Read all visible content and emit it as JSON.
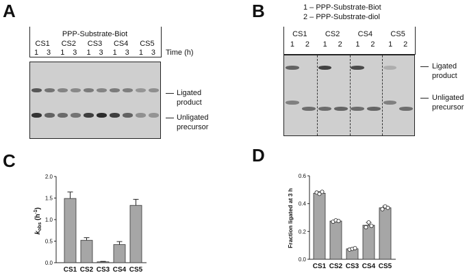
{
  "panelA": {
    "label": "A",
    "title": "PPP-Substrate-Biot",
    "lanes": [
      "CS1",
      "CS2",
      "CS3",
      "CS4",
      "CS5"
    ],
    "times": [
      "1",
      "3"
    ],
    "time_label": "Time (h)",
    "ligated_label": [
      "Ligated",
      "product"
    ],
    "unligated_label": [
      "Unligated",
      "precursor"
    ]
  },
  "panelB": {
    "label": "B",
    "legend": [
      "1 – PPP-Substrate-Biot",
      "2 – PPP-Substrate-diol"
    ],
    "lanes": [
      "CS1",
      "CS2",
      "CS4",
      "CS5"
    ],
    "subs": [
      "1",
      "2"
    ],
    "ligated_label": [
      "Ligated",
      "product"
    ],
    "unligated_label": [
      "Unligated",
      "precursor"
    ]
  },
  "panelC": {
    "label": "C"
  },
  "panelD": {
    "label": "D"
  },
  "chart_data": [
    {
      "type": "bar",
      "categories": [
        "CS1",
        "CS2",
        "CS3",
        "CS4",
        "CS5"
      ],
      "values": [
        1.49,
        0.52,
        0.02,
        0.42,
        1.33
      ],
      "errors": [
        0.15,
        0.06,
        0.01,
        0.07,
        0.14
      ],
      "ylabel": "k_obs (h⁻¹)",
      "ylabel_parts": [
        "k",
        "obs",
        " (h",
        "-1",
        ")"
      ],
      "ylim": [
        0,
        2.0
      ],
      "yticks": [
        "0.0",
        "0.5",
        "1.0",
        "1.5",
        "2.0"
      ],
      "bar_color": "#a6a6a6"
    },
    {
      "type": "bar",
      "categories": [
        "CS1",
        "CS2",
        "CS3",
        "CS4",
        "CS5"
      ],
      "values": [
        0.475,
        0.275,
        0.075,
        0.245,
        0.37
      ],
      "points": [
        [
          0.48,
          0.47,
          0.485
        ],
        [
          0.27,
          0.28,
          0.275
        ],
        [
          0.07,
          0.075,
          0.08
        ],
        [
          0.23,
          0.265,
          0.24
        ],
        [
          0.36,
          0.38,
          0.37
        ]
      ],
      "errors": [
        0.01,
        0.006,
        0.004,
        0.02,
        0.012
      ],
      "ylabel": "Fraction ligated at 3 h",
      "ylim": [
        0,
        0.6
      ],
      "yticks": [
        "0.0",
        "0.2",
        "0.4",
        "0.6"
      ],
      "bar_color": "#a6a6a6"
    }
  ]
}
